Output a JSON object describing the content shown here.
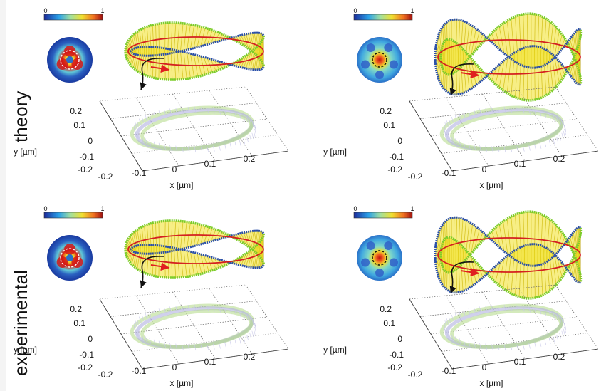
{
  "row_labels": [
    "theory",
    "experimental"
  ],
  "colorbar": {
    "min_label": "0",
    "max_label": "1"
  },
  "axes": {
    "y_label": "y [µm]",
    "x_label": "x [µm]",
    "y_ticks": [
      "0.2",
      "0.1",
      "0",
      "-0.1",
      "-0.2"
    ],
    "x_ticks": [
      "-0.2",
      "-0.1",
      "0",
      "0.1",
      "0.2"
    ]
  },
  "colors": {
    "ribbon_fill": "#f0e020",
    "ribbon_edge_green": "#7ccc2a",
    "ribbon_edge_blue": "#2a4fa8",
    "center_curve": "#d42020",
    "shadow_green": "#b8dc90",
    "shadow_blue": "#b0b0e0",
    "arrow_red": "#e02020"
  },
  "panels": [
    {
      "row": "theory",
      "lobes": 3
    },
    {
      "row": "theory",
      "lobes": 5
    },
    {
      "row": "experimental",
      "lobes": 3
    },
    {
      "row": "experimental",
      "lobes": 5
    }
  ]
}
